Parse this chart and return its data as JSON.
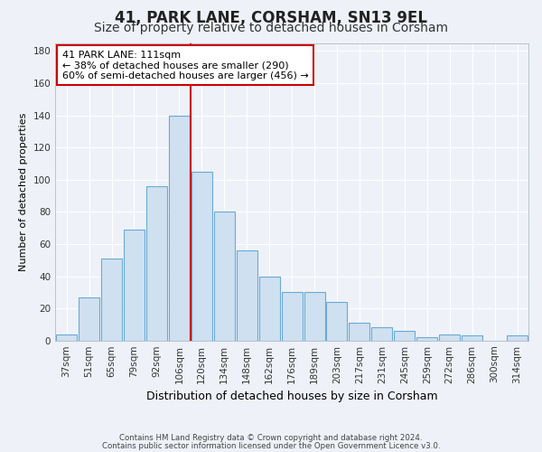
{
  "title1": "41, PARK LANE, CORSHAM, SN13 9EL",
  "title2": "Size of property relative to detached houses in Corsham",
  "xlabel": "Distribution of detached houses by size in Corsham",
  "ylabel": "Number of detached properties",
  "categories": [
    "37sqm",
    "51sqm",
    "65sqm",
    "79sqm",
    "92sqm",
    "106sqm",
    "120sqm",
    "134sqm",
    "148sqm",
    "162sqm",
    "176sqm",
    "189sqm",
    "203sqm",
    "217sqm",
    "231sqm",
    "245sqm",
    "259sqm",
    "272sqm",
    "286sqm",
    "300sqm",
    "314sqm"
  ],
  "values": [
    4,
    27,
    51,
    69,
    96,
    140,
    105,
    80,
    56,
    40,
    30,
    30,
    24,
    11,
    8,
    6,
    2,
    4,
    3,
    0,
    3
  ],
  "bar_color": "#cfe0f0",
  "bar_edge_color": "#6aaad4",
  "marker_line_at": 5.5,
  "marker_label": "41 PARK LANE: 111sqm",
  "annotation_line1": "← 38% of detached houses are smaller (290)",
  "annotation_line2": "60% of semi-detached houses are larger (456) →",
  "marker_color": "#cc0000",
  "annotation_box_edge": "#cc0000",
  "ylim": [
    0,
    185
  ],
  "yticks": [
    0,
    20,
    40,
    60,
    80,
    100,
    120,
    140,
    160,
    180
  ],
  "footnote1": "Contains HM Land Registry data © Crown copyright and database right 2024.",
  "footnote2": "Contains public sector information licensed under the Open Government Licence v3.0.",
  "bg_color": "#eef2f8",
  "grid_color": "#ffffff",
  "title1_fontsize": 12,
  "title2_fontsize": 10,
  "ylabel_fontsize": 8,
  "xlabel_fontsize": 9,
  "tick_fontsize": 7.5,
  "annot_fontsize": 8
}
